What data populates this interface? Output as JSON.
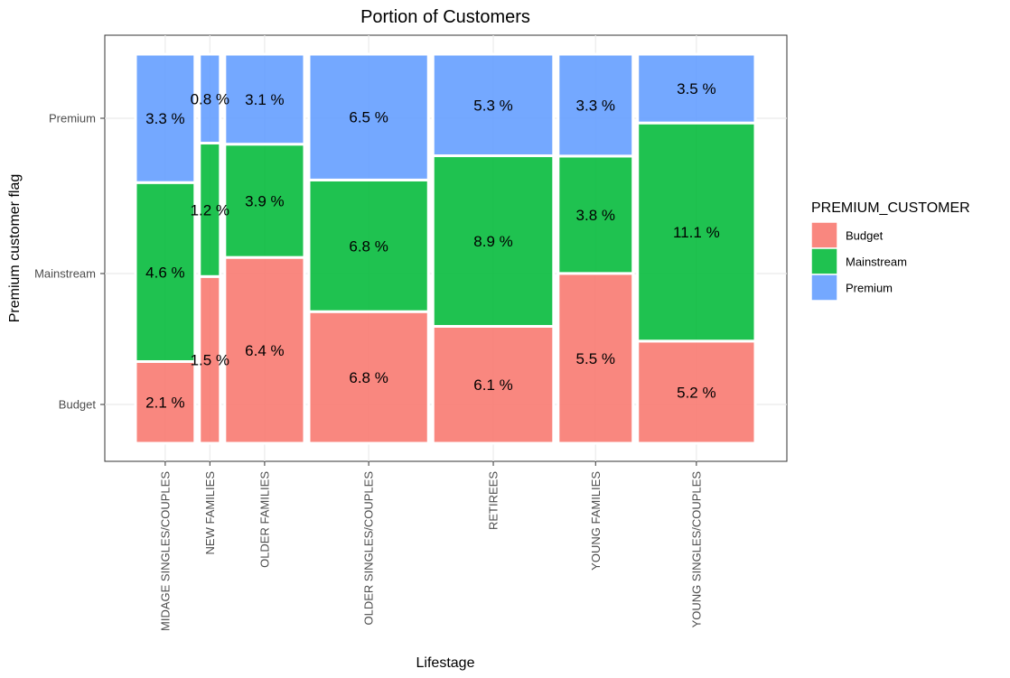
{
  "chart_data": {
    "type": "mosaic",
    "title": "Portion of Customers",
    "xlabel": "Lifestage",
    "ylabel": "Premium customer flag",
    "categories": [
      "MIDAGE SINGLES/COUPLES",
      "NEW FAMILIES",
      "OLDER FAMILIES",
      "OLDER SINGLES/COUPLES",
      "RETIREES",
      "YOUNG FAMILIES",
      "YOUNG SINGLES/COUPLES"
    ],
    "y_levels": [
      "Budget",
      "Mainstream",
      "Premium"
    ],
    "series": [
      {
        "name": "Budget",
        "color": "#F8766D",
        "values": [
          2.1,
          1.5,
          6.4,
          6.8,
          6.1,
          5.5,
          5.2
        ],
        "labels": [
          "2.1 %",
          "1.5 %",
          "6.4 %",
          "6.8 %",
          "6.1 %",
          "5.5 %",
          "5.2 %"
        ]
      },
      {
        "name": "Mainstream",
        "color": "#00BA38",
        "values": [
          4.6,
          1.2,
          3.9,
          6.8,
          8.9,
          3.8,
          11.1
        ],
        "labels": [
          "4.6 %",
          "1.2 %",
          "3.9 %",
          "6.8 %",
          "8.9 %",
          "3.8 %",
          "11.1 %"
        ]
      },
      {
        "name": "Premium",
        "color": "#619CFF",
        "values": [
          3.3,
          0.8,
          3.1,
          6.5,
          5.3,
          3.3,
          3.5
        ],
        "labels": [
          "3.3 %",
          "0.8 %",
          "3.1 %",
          "6.5 %",
          "5.3 %",
          "3.3 %",
          "3.5 %"
        ]
      }
    ],
    "legend": {
      "title": "PREMIUM_CUSTOMER",
      "position": "right"
    },
    "grid": true
  }
}
